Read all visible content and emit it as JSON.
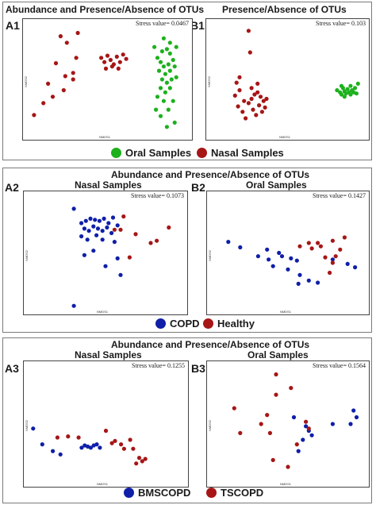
{
  "colors": {
    "oral": "#1db11d",
    "nasal": "#a61616",
    "copd": "#0f1fa8",
    "healthy": "#a61616",
    "bmscopd": "#0f1fa8",
    "tscopd": "#a61616",
    "border": "#7a7a7a"
  },
  "panel1": {
    "title_a": "Abundance and Presence/Absence of OTUs",
    "title_b": "Presence/Absence of OTUs",
    "legend": [
      {
        "label": "Oral Samples",
        "color": "#1db11d"
      },
      {
        "label": "Nasal Samples",
        "color": "#a61616"
      }
    ]
  },
  "panel2": {
    "title": "Abundance and Presence/Absence of OTUs",
    "legend": [
      {
        "label": "COPD",
        "color": "#0f1fa8"
      },
      {
        "label": "Healthy",
        "color": "#a61616"
      }
    ]
  },
  "panel3": {
    "title": "Abundance and Presence/Absence of OTUs",
    "legend": [
      {
        "label": "BMSCOPD",
        "color": "#0f1fa8"
      },
      {
        "label": "TSCOPD",
        "color": "#a61616"
      }
    ]
  },
  "chart_data": [
    {
      "id": "A1",
      "type": "scatter",
      "title": "Abundance and Presence/Absence of OTUs",
      "stress_label": "Stress value= 0.0467",
      "xlabel": "NMDS1",
      "ylabel": "NMDS2",
      "xlim": [
        0,
        100
      ],
      "ylim": [
        0,
        100
      ],
      "series": [
        {
          "name": "Oral Samples",
          "color": "#1db11d",
          "points": [
            [
              82,
              70
            ],
            [
              85,
              76
            ],
            [
              88,
              78
            ],
            [
              90,
              74
            ],
            [
              84,
              66
            ],
            [
              86,
              62
            ],
            [
              89,
              64
            ],
            [
              92,
              68
            ],
            [
              83,
              58
            ],
            [
              87,
              55
            ],
            [
              90,
              58
            ],
            [
              93,
              62
            ],
            [
              85,
              50
            ],
            [
              88,
              47
            ],
            [
              91,
              50
            ],
            [
              94,
              52
            ],
            [
              84,
              42
            ],
            [
              87,
              38
            ],
            [
              90,
              42
            ],
            [
              82,
              34
            ],
            [
              86,
              30
            ],
            [
              92,
              30
            ],
            [
              81,
              22
            ],
            [
              89,
              22
            ],
            [
              84,
              16
            ],
            [
              93,
              10
            ],
            [
              88,
              6
            ],
            [
              86,
              88
            ],
            [
              90,
              84
            ],
            [
              94,
              80
            ],
            [
              80,
              80
            ]
          ]
        },
        {
          "name": "Nasal Samples",
          "color": "#a61616",
          "points": [
            [
              20,
              90
            ],
            [
              24,
              84
            ],
            [
              17,
              65
            ],
            [
              12,
              46
            ],
            [
              15,
              34
            ],
            [
              9,
              28
            ],
            [
              3,
              17
            ],
            [
              28,
              50
            ],
            [
              28,
              56
            ],
            [
              30,
              70
            ],
            [
              46,
              70
            ],
            [
              48,
              66
            ],
            [
              50,
              72
            ],
            [
              52,
              68
            ],
            [
              54,
              64
            ],
            [
              56,
              71
            ],
            [
              58,
              66
            ],
            [
              60,
              73
            ],
            [
              62,
              69
            ],
            [
              49,
              60
            ],
            [
              53,
              62
            ],
            [
              57,
              60
            ],
            [
              22,
              40
            ],
            [
              23,
              53
            ],
            [
              31,
              93
            ]
          ]
        }
      ]
    },
    {
      "id": "B1",
      "type": "scatter",
      "title": "Presence/Absence of OTUs",
      "stress_label": "Stress value= 0.103",
      "xlabel": "NMDS1",
      "ylabel": "NMDS2",
      "xlim": [
        0,
        100
      ],
      "ylim": [
        0,
        100
      ],
      "series": [
        {
          "name": "Oral Samples",
          "color": "#1db11d",
          "points": [
            [
              83,
              40
            ],
            [
              85,
              38
            ],
            [
              86,
              36
            ],
            [
              87,
              42
            ],
            [
              88,
              39
            ],
            [
              89,
              37
            ],
            [
              90,
              41
            ],
            [
              91,
              38
            ],
            [
              92,
              36
            ],
            [
              93,
              40
            ],
            [
              94,
              38
            ],
            [
              95,
              42
            ],
            [
              96,
              37
            ],
            [
              88,
              34
            ],
            [
              86,
              44
            ],
            [
              92,
              44
            ],
            [
              97,
              46
            ]
          ]
        },
        {
          "name": "Nasal Samples",
          "color": "#a61616",
          "points": [
            [
              24,
              95
            ],
            [
              25,
              75
            ],
            [
              16,
              47
            ],
            [
              18,
              40
            ],
            [
              15,
              35
            ],
            [
              17,
              25
            ],
            [
              20,
              20
            ],
            [
              22,
              14
            ],
            [
              24,
              28
            ],
            [
              26,
              32
            ],
            [
              28,
              36
            ],
            [
              30,
              38
            ],
            [
              32,
              34
            ],
            [
              34,
              30
            ],
            [
              27,
              22
            ],
            [
              29,
              17
            ],
            [
              31,
              26
            ],
            [
              33,
              20
            ],
            [
              35,
              24
            ],
            [
              26,
              42
            ],
            [
              30,
              46
            ],
            [
              36,
              32
            ],
            [
              21,
              30
            ],
            [
              18,
              52
            ]
          ]
        }
      ]
    },
    {
      "id": "A2",
      "type": "scatter",
      "subtitle": "Nasal Samples",
      "stress_label": "Stress value= 0.1073",
      "xlabel": "NMDS1",
      "ylabel": "NMDS2",
      "xlim": [
        0,
        100
      ],
      "ylim": [
        0,
        100
      ],
      "series": [
        {
          "name": "COPD",
          "color": "#0f1fa8",
          "points": [
            [
              29,
              90
            ],
            [
              34,
              77
            ],
            [
              37,
              79
            ],
            [
              40,
              81
            ],
            [
              43,
              80
            ],
            [
              46,
              79
            ],
            [
              49,
              81
            ],
            [
              52,
              77
            ],
            [
              55,
              82
            ],
            [
              58,
              75
            ],
            [
              36,
              72
            ],
            [
              39,
              70
            ],
            [
              42,
              74
            ],
            [
              45,
              72
            ],
            [
              48,
              70
            ],
            [
              51,
              73
            ],
            [
              54,
              68
            ],
            [
              34,
              65
            ],
            [
              38,
              62
            ],
            [
              44,
              66
            ],
            [
              48,
              62
            ],
            [
              56,
              60
            ],
            [
              42,
              52
            ],
            [
              36,
              48
            ],
            [
              58,
              45
            ],
            [
              50,
              38
            ],
            [
              60,
              30
            ],
            [
              29,
              2
            ]
          ]
        },
        {
          "name": "Healthy",
          "color": "#a61616",
          "points": [
            [
              56,
              71
            ],
            [
              60,
              71
            ],
            [
              62,
              83
            ],
            [
              70,
              67
            ],
            [
              80,
              59
            ],
            [
              84,
              61
            ],
            [
              92,
              73
            ],
            [
              66,
              46
            ]
          ]
        }
      ]
    },
    {
      "id": "B2",
      "type": "scatter",
      "subtitle": "Oral Samples",
      "stress_label": "Stress value= 0.1427",
      "xlabel": "NMDS1",
      "ylabel": "NMDS2",
      "xlim": [
        0,
        100
      ],
      "ylim": [
        0,
        100
      ],
      "series": [
        {
          "name": "COPD",
          "color": "#0f1fa8",
          "points": [
            [
              10,
              60
            ],
            [
              18,
              55
            ],
            [
              30,
              47
            ],
            [
              36,
              53
            ],
            [
              37,
              44
            ],
            [
              44,
              50
            ],
            [
              46,
              47
            ],
            [
              50,
              35
            ],
            [
              52,
              45
            ],
            [
              56,
              43
            ],
            [
              57,
              22
            ],
            [
              58,
              30
            ],
            [
              64,
              25
            ],
            [
              70,
              23
            ],
            [
              80,
              44
            ],
            [
              90,
              40
            ],
            [
              40,
              38
            ],
            [
              95,
              37
            ]
          ]
        },
        {
          "name": "Healthy",
          "color": "#a61616",
          "points": [
            [
              58,
              56
            ],
            [
              64,
              59
            ],
            [
              66,
              54
            ],
            [
              70,
              59
            ],
            [
              75,
              46
            ],
            [
              80,
              61
            ],
            [
              85,
              53
            ],
            [
              88,
              64
            ],
            [
              80,
              41
            ],
            [
              72,
              56
            ],
            [
              78,
              32
            ],
            [
              82,
              47
            ]
          ]
        }
      ]
    },
    {
      "id": "A3",
      "type": "scatter",
      "subtitle": "Nasal Samples",
      "stress_label": "Stress value= 0.1255",
      "xlabel": "NMDS1",
      "ylabel": "NMDS2",
      "xlim": [
        0,
        100
      ],
      "ylim": [
        0,
        100
      ],
      "series": [
        {
          "name": "BMSCOPD",
          "color": "#0f1fa8",
          "points": [
            [
              2,
              46
            ],
            [
              8,
              32
            ],
            [
              15,
              26
            ],
            [
              20,
              23
            ],
            [
              34,
              29
            ],
            [
              36,
              31
            ],
            [
              38,
              30
            ],
            [
              40,
              29
            ],
            [
              42,
              31
            ],
            [
              44,
              32
            ],
            [
              46,
              29
            ]
          ]
        },
        {
          "name": "TSCOPD",
          "color": "#a61616",
          "points": [
            [
              18,
              38
            ],
            [
              25,
              39
            ],
            [
              32,
              38
            ],
            [
              50,
              44
            ],
            [
              54,
              33
            ],
            [
              56,
              35
            ],
            [
              60,
              32
            ],
            [
              62,
              28
            ],
            [
              66,
              36
            ],
            [
              68,
              28
            ],
            [
              70,
              15
            ],
            [
              72,
              20
            ],
            [
              74,
              17
            ],
            [
              76,
              19
            ]
          ]
        }
      ]
    },
    {
      "id": "B3",
      "type": "scatter",
      "subtitle": "Oral Samples",
      "stress_label": "Stress value= 0.1564",
      "xlabel": "NMDS1",
      "ylabel": "NMDS2",
      "xlim": [
        0,
        100
      ],
      "ylim": [
        0,
        100
      ],
      "series": [
        {
          "name": "BMSCOPD",
          "color": "#0f1fa8",
          "points": [
            [
              54,
              56
            ],
            [
              62,
              48
            ],
            [
              64,
              44
            ],
            [
              66,
              40
            ],
            [
              60,
              36
            ],
            [
              57,
              26
            ],
            [
              80,
              50
            ],
            [
              92,
              50
            ],
            [
              94,
              62
            ],
            [
              96,
              56
            ]
          ]
        },
        {
          "name": "TSCOPD",
          "color": "#a61616",
          "points": [
            [
              42,
              94
            ],
            [
              52,
              82
            ],
            [
              42,
              76
            ],
            [
              14,
              64
            ],
            [
              32,
              50
            ],
            [
              36,
              58
            ],
            [
              38,
              42
            ],
            [
              18,
              42
            ],
            [
              40,
              18
            ],
            [
              50,
              12
            ],
            [
              62,
              52
            ],
            [
              64,
              46
            ],
            [
              56,
              32
            ]
          ]
        }
      ]
    }
  ]
}
